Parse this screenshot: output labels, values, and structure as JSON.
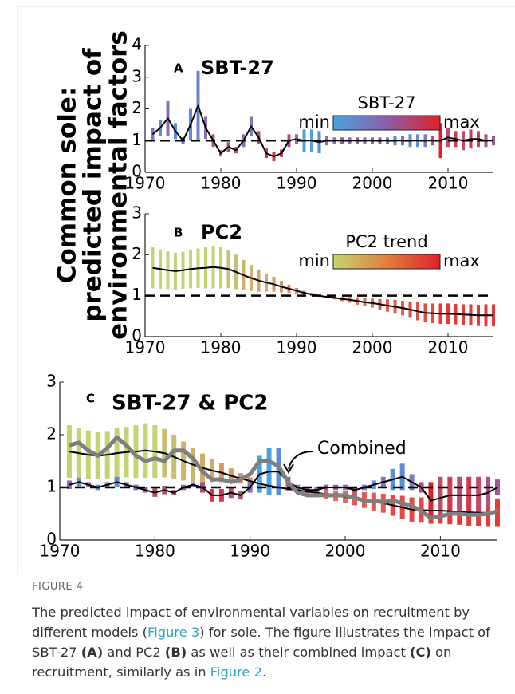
{
  "y_axis_label": [
    "Common sole:",
    "predicted impact of",
    "environmental factors"
  ],
  "chart_data": [
    {
      "type": "line",
      "panel_label": "A",
      "title": "SBT-27",
      "x": [
        1971,
        1972,
        1973,
        1974,
        1975,
        1976,
        1977,
        1978,
        1979,
        1980,
        1981,
        1982,
        1983,
        1984,
        1985,
        1986,
        1987,
        1988,
        1989,
        1990,
        1991,
        1992,
        1993,
        1994,
        1995,
        1996,
        1997,
        1998,
        1999,
        2000,
        2001,
        2002,
        2003,
        2004,
        2005,
        2006,
        2007,
        2008,
        2009,
        2010,
        2011,
        2012,
        2013,
        2014,
        2015,
        2016
      ],
      "xlim": [
        1970,
        2016
      ],
      "xticks": [
        1970,
        1980,
        1990,
        2000,
        2010
      ],
      "ylim": [
        0,
        4
      ],
      "yticks": [
        0,
        1,
        2,
        3,
        4
      ],
      "ref_line": 1,
      "series": [
        {
          "color": "#000000",
          "line_width": 2,
          "values": [
            1.2,
            1.4,
            1.7,
            1.3,
            1.0,
            1.5,
            2.1,
            1.4,
            1.0,
            0.6,
            0.8,
            0.7,
            1.0,
            1.45,
            1.1,
            0.6,
            0.5,
            0.6,
            1.0,
            1.05,
            1.0,
            1.0,
            0.95,
            1.0,
            1.0,
            1.0,
            1.0,
            1.0,
            1.0,
            1.0,
            1.0,
            1.0,
            1.0,
            1.0,
            1.0,
            1.0,
            1.0,
            1.0,
            1.0,
            1.1,
            1.05,
            1.0,
            1.05,
            1.05,
            1.0,
            1.0
          ],
          "errors": [
            0.2,
            0.25,
            0.55,
            0.25,
            0.1,
            0.5,
            1.1,
            0.35,
            0.2,
            0.1,
            0.15,
            0.1,
            0.2,
            0.3,
            0.2,
            0.15,
            0.15,
            0.12,
            0.2,
            0.15,
            0.35,
            0.35,
            0.35,
            0.15,
            0.1,
            0.1,
            0.1,
            0.1,
            0.1,
            0.1,
            0.1,
            0.1,
            0.15,
            0.15,
            0.2,
            0.2,
            0.2,
            0.15,
            0.55,
            0.3,
            0.25,
            0.3,
            0.3,
            0.25,
            0.2,
            0.15
          ],
          "bar_colors": [
            "#8a6fb0",
            "#5a8ed6",
            "#8a6fb0",
            "#5a8ed6",
            "#7a7ac0",
            "#5a8ed6",
            "#6a84cc",
            "#8a6fb0",
            "#a05a90",
            "#c04a6a",
            "#b05080",
            "#c04a6a",
            "#8a6fb0",
            "#7a7ac0",
            "#b05080",
            "#d03a50",
            "#d03a50",
            "#c04a6a",
            "#b05080",
            "#8a6fb0",
            "#4aa3e0",
            "#4aa3e0",
            "#5a8ed6",
            "#8a6fb0",
            "#8a6fb0",
            "#a05a90",
            "#8a6fb0",
            "#a05a90",
            "#8a6fb0",
            "#8a6fb0",
            "#a05a90",
            "#7a7ac0",
            "#5a8ed6",
            "#7a7ac0",
            "#5a8ed6",
            "#5a8ed6",
            "#7a7ac0",
            "#b05080",
            "#e0202a",
            "#c04a6a",
            "#d03a50",
            "#c04a6a",
            "#d03a50",
            "#c04a6a",
            "#b05080",
            "#a05a90"
          ]
        }
      ],
      "colorbar": {
        "title": "SBT-27",
        "min_label": "min",
        "max_label": "max",
        "colors": [
          "#4aa3e0",
          "#8a5fa8",
          "#e0202a"
        ]
      }
    },
    {
      "type": "line",
      "panel_label": "B",
      "title": "PC2",
      "x": [
        1971,
        1972,
        1973,
        1974,
        1975,
        1976,
        1977,
        1978,
        1979,
        1980,
        1981,
        1982,
        1983,
        1984,
        1985,
        1986,
        1987,
        1988,
        1989,
        1990,
        1991,
        1992,
        1993,
        1994,
        1995,
        1996,
        1997,
        1998,
        1999,
        2000,
        2001,
        2002,
        2003,
        2004,
        2005,
        2006,
        2007,
        2008,
        2009,
        2010,
        2011,
        2012,
        2013,
        2014,
        2015,
        2016
      ],
      "xlim": [
        1970,
        2016
      ],
      "xticks": [
        1970,
        1980,
        1990,
        2000,
        2010
      ],
      "ylim": [
        0,
        3
      ],
      "yticks": [
        0,
        1,
        2,
        3
      ],
      "ref_line": 1,
      "series": [
        {
          "color": "#000000",
          "line_width": 2,
          "values": [
            1.68,
            1.65,
            1.62,
            1.6,
            1.62,
            1.65,
            1.67,
            1.68,
            1.7,
            1.68,
            1.65,
            1.58,
            1.5,
            1.43,
            1.37,
            1.32,
            1.28,
            1.22,
            1.17,
            1.12,
            1.07,
            1.03,
            1.0,
            0.97,
            0.95,
            0.92,
            0.9,
            0.87,
            0.84,
            0.82,
            0.79,
            0.76,
            0.73,
            0.7,
            0.66,
            0.62,
            0.58,
            0.57,
            0.56,
            0.56,
            0.55,
            0.54,
            0.53,
            0.52,
            0.52,
            0.52
          ],
          "errors": [
            0.5,
            0.48,
            0.46,
            0.45,
            0.45,
            0.47,
            0.48,
            0.5,
            0.52,
            0.5,
            0.46,
            0.42,
            0.37,
            0.32,
            0.27,
            0.22,
            0.18,
            0.14,
            0.1,
            0.07,
            0.05,
            0.04,
            0.03,
            0.03,
            0.04,
            0.05,
            0.07,
            0.09,
            0.1,
            0.11,
            0.13,
            0.15,
            0.17,
            0.18,
            0.2,
            0.22,
            0.23,
            0.24,
            0.25,
            0.25,
            0.25,
            0.25,
            0.26,
            0.26,
            0.27,
            0.27
          ],
          "bar_colors": [
            "#c2d474",
            "#c2d474",
            "#c2d474",
            "#c2d474",
            "#c2d474",
            "#c2d474",
            "#c2d474",
            "#c2d474",
            "#c2d474",
            "#c2d474",
            "#c8c070",
            "#c8c070",
            "#ccb46c",
            "#ccb46c",
            "#d0a868",
            "#d0a868",
            "#d49a66",
            "#d49a66",
            "#d88e64",
            "#d88e64",
            "#dc8262",
            "#dc8262",
            "#e07660",
            "#e07660",
            "#e07660",
            "#e07660",
            "#e26a5a",
            "#e26a5a",
            "#e26a5a",
            "#e26a5a",
            "#e45a50",
            "#e45a50",
            "#e45a50",
            "#e45a50",
            "#e44a44",
            "#e44a44",
            "#e44a44",
            "#e44a44",
            "#e43a38",
            "#e43a38",
            "#e43a38",
            "#e43a38",
            "#e43a38",
            "#e43a38",
            "#e43a38",
            "#e43a38"
          ]
        }
      ],
      "colorbar": {
        "title": "PC2 trend",
        "min_label": "min",
        "max_label": "max",
        "colors": [
          "#c2d474",
          "#e08040",
          "#e0202a"
        ]
      }
    },
    {
      "type": "line",
      "panel_label": "C",
      "title": "SBT-27 & PC2",
      "annotation": "Combined",
      "x": [
        1971,
        1972,
        1973,
        1974,
        1975,
        1976,
        1977,
        1978,
        1979,
        1980,
        1981,
        1982,
        1983,
        1984,
        1985,
        1986,
        1987,
        1988,
        1989,
        1990,
        1991,
        1992,
        1993,
        1994,
        1995,
        1996,
        1997,
        1998,
        1999,
        2000,
        2001,
        2002,
        2003,
        2004,
        2005,
        2006,
        2007,
        2008,
        2009,
        2010,
        2011,
        2012,
        2013,
        2014,
        2015,
        2016
      ],
      "xlim": [
        1970,
        2016
      ],
      "xticks": [
        1970,
        1980,
        1990,
        2000,
        2010
      ],
      "ylim": [
        0,
        3
      ],
      "yticks": [
        0,
        1,
        2,
        3
      ],
      "ref_line": 1,
      "series": [
        {
          "color": "#000000",
          "line_width": 2,
          "values": [
            1.68,
            1.65,
            1.62,
            1.6,
            1.62,
            1.65,
            1.67,
            1.68,
            1.7,
            1.68,
            1.65,
            1.58,
            1.5,
            1.43,
            1.37,
            1.32,
            1.28,
            1.22,
            1.17,
            1.12,
            1.07,
            1.03,
            1.0,
            0.97,
            0.95,
            0.92,
            0.9,
            0.87,
            0.84,
            0.82,
            0.79,
            0.76,
            0.73,
            0.7,
            0.66,
            0.62,
            0.58,
            0.57,
            0.56,
            0.56,
            0.55,
            0.54,
            0.53,
            0.52,
            0.52,
            0.52
          ],
          "errors": [
            0.5,
            0.48,
            0.46,
            0.45,
            0.45,
            0.47,
            0.48,
            0.5,
            0.52,
            0.5,
            0.46,
            0.42,
            0.37,
            0.32,
            0.27,
            0.22,
            0.18,
            0.14,
            0.1,
            0.07,
            0.05,
            0.04,
            0.03,
            0.03,
            0.04,
            0.05,
            0.07,
            0.09,
            0.1,
            0.11,
            0.13,
            0.15,
            0.17,
            0.18,
            0.2,
            0.22,
            0.23,
            0.24,
            0.25,
            0.25,
            0.25,
            0.25,
            0.26,
            0.26,
            0.27,
            0.27
          ],
          "bar_colors": [
            "#c2d474",
            "#c2d474",
            "#c2d474",
            "#c2d474",
            "#c2d474",
            "#c2d474",
            "#c2d474",
            "#c2d474",
            "#c2d474",
            "#c2d474",
            "#c8c070",
            "#c8c070",
            "#ccb46c",
            "#ccb46c",
            "#d0a868",
            "#d0a868",
            "#d49a66",
            "#d49a66",
            "#d88e64",
            "#d88e64",
            "#dc8262",
            "#dc8262",
            "#e07660",
            "#e07660",
            "#e07660",
            "#e07660",
            "#e26a5a",
            "#e26a5a",
            "#e26a5a",
            "#e26a5a",
            "#e45a50",
            "#e45a50",
            "#e45a50",
            "#e45a50",
            "#e44a44",
            "#e44a44",
            "#e44a44",
            "#e44a44",
            "#e43a38",
            "#e43a38",
            "#e43a38",
            "#e43a38",
            "#e43a38",
            "#e43a38",
            "#e43a38",
            "#e43a38"
          ]
        },
        {
          "color": "#000000",
          "line_width": 2,
          "values": [
            1.05,
            1.1,
            1.05,
            1.0,
            1.05,
            1.1,
            1.05,
            1.0,
            0.95,
            0.9,
            0.95,
            0.9,
            1.0,
            1.05,
            1.0,
            0.85,
            0.85,
            0.9,
            0.85,
            1.0,
            1.25,
            1.3,
            1.3,
            1.1,
            1.0,
            0.95,
            0.95,
            1.0,
            1.0,
            1.0,
            0.95,
            1.0,
            1.05,
            1.1,
            1.15,
            1.2,
            1.1,
            1.0,
            0.75,
            0.8,
            0.85,
            0.85,
            0.85,
            0.85,
            0.9,
            1.0
          ],
          "errors": [
            0.08,
            0.08,
            0.05,
            0.05,
            0.05,
            0.1,
            0.05,
            0.05,
            0.05,
            0.08,
            0.08,
            0.05,
            0.05,
            0.05,
            0.1,
            0.12,
            0.12,
            0.1,
            0.08,
            0.1,
            0.35,
            0.45,
            0.45,
            0.1,
            0.05,
            0.05,
            0.05,
            0.05,
            0.05,
            0.05,
            0.05,
            0.05,
            0.08,
            0.1,
            0.2,
            0.25,
            0.15,
            0.1,
            0.35,
            0.4,
            0.35,
            0.35,
            0.35,
            0.35,
            0.3,
            0.15
          ],
          "bar_colors": [
            "#8a6fb0",
            "#5a8ed6",
            "#8a6fb0",
            "#5a8ed6",
            "#7a7ac0",
            "#5a8ed6",
            "#6a84cc",
            "#8a6fb0",
            "#a05a90",
            "#c04a6a",
            "#b05080",
            "#c04a6a",
            "#8a6fb0",
            "#7a7ac0",
            "#b05080",
            "#d03a50",
            "#d03a50",
            "#c04a6a",
            "#b05080",
            "#8a6fb0",
            "#4aa3e0",
            "#4aa3e0",
            "#5a8ed6",
            "#8a6fb0",
            "#8a6fb0",
            "#a05a90",
            "#8a6fb0",
            "#a05a90",
            "#8a6fb0",
            "#8a6fb0",
            "#a05a90",
            "#7a7ac0",
            "#5a8ed6",
            "#7a7ac0",
            "#5a8ed6",
            "#5a8ed6",
            "#7a7ac0",
            "#b05080",
            "#e0202a",
            "#c04a6a",
            "#d03a50",
            "#c04a6a",
            "#d03a50",
            "#c04a6a",
            "#b05080",
            "#a05a90"
          ]
        },
        {
          "color": "#7f7f7f",
          "line_width": 5,
          "values": [
            1.8,
            1.85,
            1.7,
            1.6,
            1.75,
            1.95,
            1.8,
            1.6,
            1.5,
            1.55,
            1.5,
            1.7,
            1.7,
            1.55,
            1.3,
            1.15,
            1.15,
            1.1,
            1.15,
            1.25,
            1.5,
            1.5,
            1.4,
            1.1,
            0.9,
            0.85,
            0.85,
            0.85,
            0.85,
            0.85,
            0.8,
            0.75,
            0.75,
            0.72,
            0.75,
            0.7,
            0.65,
            0.55,
            0.42,
            0.45,
            0.5,
            0.5,
            0.48,
            0.48,
            0.5,
            0.55
          ]
        }
      ]
    }
  ],
  "caption": {
    "label": "FIGURE 4",
    "segments": [
      "The predicted impact of environmental variables on recruitment by different models (",
      "Figure 3",
      ") for sole. The figure illustrates the impact of SBT-27 ",
      "(A)",
      " and PC2 ",
      "(B)",
      " as well as their combined impact ",
      "(C)",
      " on recruitment, similarly as in ",
      "Figure 2",
      "."
    ]
  }
}
